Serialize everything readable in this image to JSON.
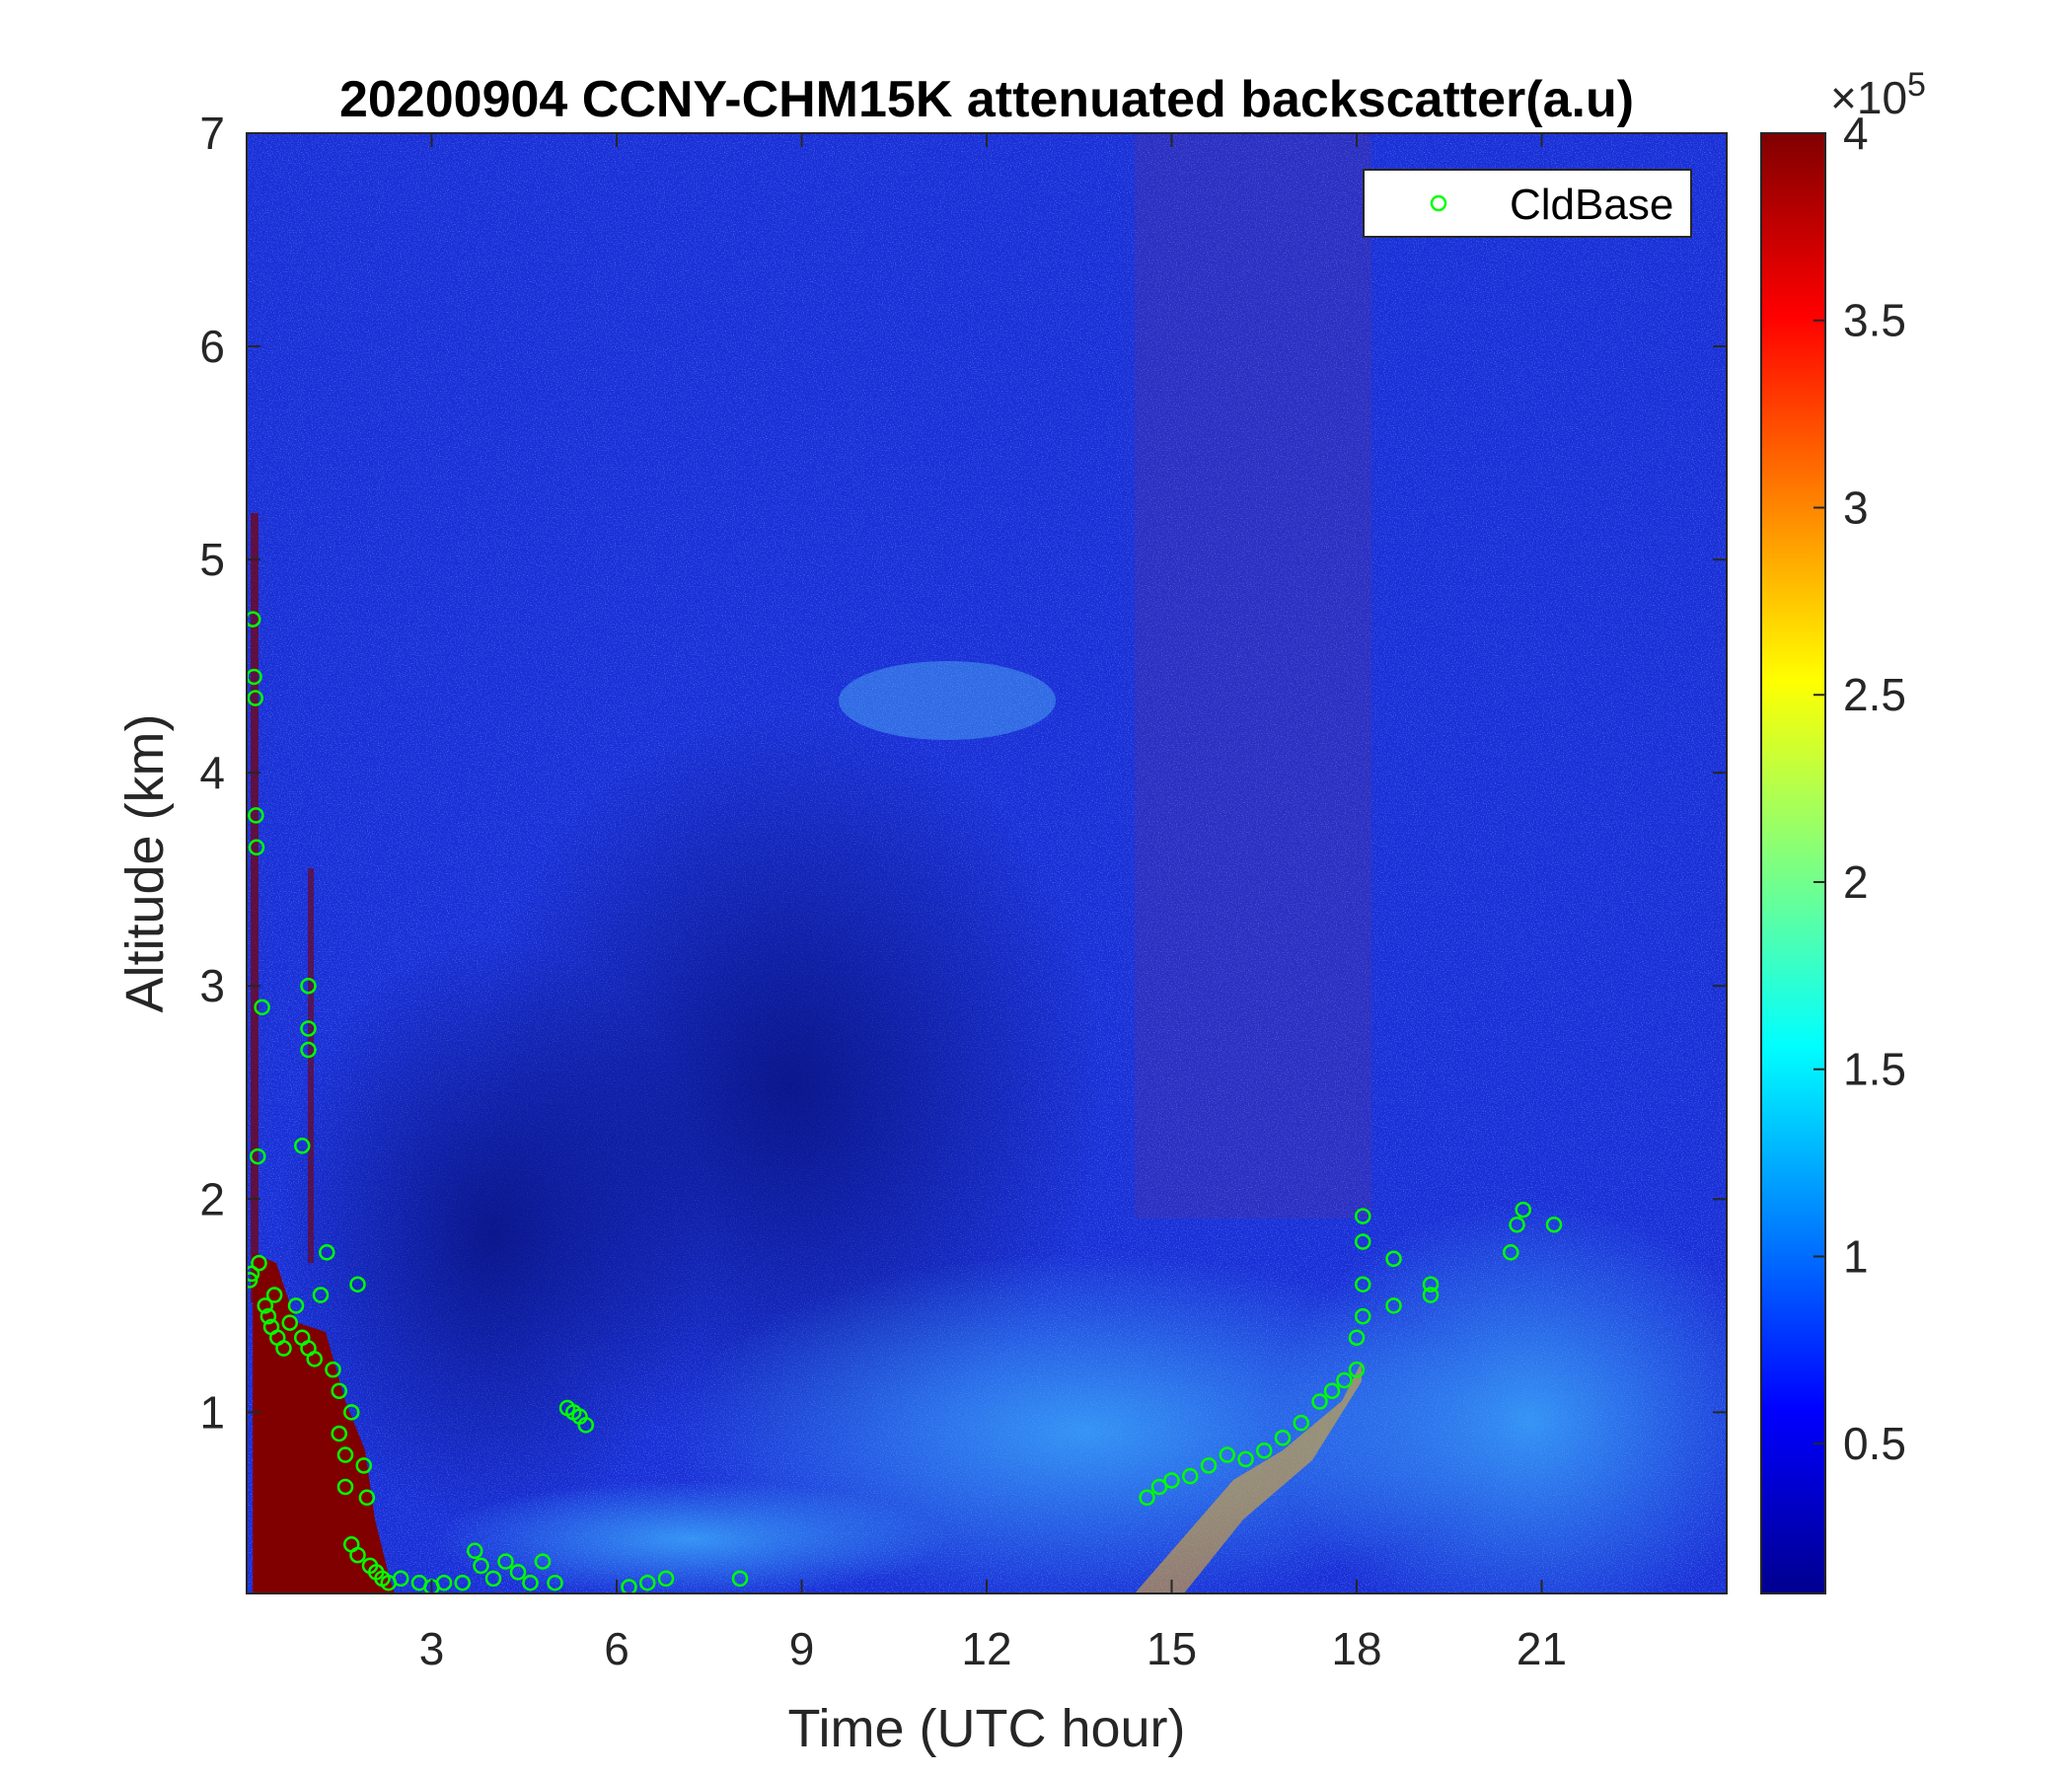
{
  "chart_data": {
    "type": "heatmap",
    "title": "20200904 CCNY-CHM15K attenuated backscatter(a.u)",
    "xlabel": "Time (UTC hour)",
    "ylabel": "Altitude (km)",
    "xlim": [
      0,
      24
    ],
    "ylim": [
      0.15,
      7
    ],
    "x_ticks": [
      "3",
      "6",
      "9",
      "12",
      "15",
      "18",
      "21"
    ],
    "y_ticks": [
      "1",
      "2",
      "3",
      "4",
      "5",
      "6",
      "7"
    ],
    "colormap": "jet",
    "colorbar": {
      "range": [
        0.1,
        4
      ],
      "ticks": [
        "0.5",
        "1",
        "1.5",
        "2",
        "2.5",
        "3",
        "3.5",
        "4"
      ],
      "exponent_label": "×10",
      "exponent": "5"
    },
    "legend": {
      "position": "top-right",
      "entries": [
        "CldBase"
      ]
    },
    "series": [
      {
        "name": "CldBase",
        "type": "scatter",
        "marker": "circle-open",
        "color": "#00ff00",
        "points": [
          [
            0.05,
            1.62
          ],
          [
            0.08,
            1.65
          ],
          [
            0.1,
            4.72
          ],
          [
            0.12,
            4.45
          ],
          [
            0.14,
            4.35
          ],
          [
            0.15,
            3.8
          ],
          [
            0.16,
            3.65
          ],
          [
            0.18,
            2.2
          ],
          [
            0.2,
            1.7
          ],
          [
            0.25,
            2.9
          ],
          [
            0.3,
            1.5
          ],
          [
            0.35,
            1.45
          ],
          [
            0.4,
            1.4
          ],
          [
            0.45,
            1.55
          ],
          [
            0.5,
            1.35
          ],
          [
            0.6,
            1.3
          ],
          [
            0.7,
            1.42
          ],
          [
            0.8,
            1.5
          ],
          [
            0.9,
            1.35
          ],
          [
            1.0,
            1.3
          ],
          [
            1.0,
            3.0
          ],
          [
            1.0,
            2.8
          ],
          [
            1.0,
            2.7
          ],
          [
            0.9,
            2.25
          ],
          [
            1.1,
            1.25
          ],
          [
            1.2,
            1.55
          ],
          [
            1.3,
            1.75
          ],
          [
            1.4,
            1.2
          ],
          [
            1.5,
            1.1
          ],
          [
            1.5,
            0.9
          ],
          [
            1.6,
            0.8
          ],
          [
            1.6,
            0.65
          ],
          [
            1.7,
            1.0
          ],
          [
            1.8,
            1.6
          ],
          [
            1.9,
            0.75
          ],
          [
            1.95,
            0.6
          ],
          [
            1.7,
            0.38
          ],
          [
            1.8,
            0.33
          ],
          [
            2.0,
            0.28
          ],
          [
            2.1,
            0.25
          ],
          [
            2.2,
            0.22
          ],
          [
            2.3,
            0.2
          ],
          [
            2.5,
            0.22
          ],
          [
            2.8,
            0.2
          ],
          [
            3.0,
            0.18
          ],
          [
            3.2,
            0.2
          ],
          [
            3.5,
            0.2
          ],
          [
            3.7,
            0.35
          ],
          [
            3.8,
            0.28
          ],
          [
            4.0,
            0.22
          ],
          [
            4.2,
            0.3
          ],
          [
            4.4,
            0.25
          ],
          [
            4.6,
            0.2
          ],
          [
            4.8,
            0.3
          ],
          [
            5.0,
            0.2
          ],
          [
            5.2,
            1.02
          ],
          [
            5.3,
            1.0
          ],
          [
            5.4,
            0.98
          ],
          [
            5.5,
            0.94
          ],
          [
            6.2,
            0.18
          ],
          [
            6.5,
            0.2
          ],
          [
            6.8,
            0.22
          ],
          [
            8.0,
            0.22
          ],
          [
            14.6,
            0.6
          ],
          [
            14.8,
            0.65
          ],
          [
            15.0,
            0.68
          ],
          [
            15.3,
            0.7
          ],
          [
            15.6,
            0.75
          ],
          [
            15.9,
            0.8
          ],
          [
            16.2,
            0.78
          ],
          [
            16.5,
            0.82
          ],
          [
            16.8,
            0.88
          ],
          [
            17.1,
            0.95
          ],
          [
            17.4,
            1.05
          ],
          [
            17.6,
            1.1
          ],
          [
            17.8,
            1.15
          ],
          [
            18.0,
            1.2
          ],
          [
            18.0,
            1.35
          ],
          [
            18.1,
            1.45
          ],
          [
            18.1,
            1.6
          ],
          [
            18.1,
            1.8
          ],
          [
            18.1,
            1.92
          ],
          [
            18.6,
            1.5
          ],
          [
            18.6,
            1.72
          ],
          [
            19.2,
            1.6
          ],
          [
            19.2,
            1.55
          ],
          [
            20.5,
            1.75
          ],
          [
            20.6,
            1.88
          ],
          [
            20.7,
            1.95
          ],
          [
            21.2,
            1.88
          ]
        ]
      }
    ]
  }
}
